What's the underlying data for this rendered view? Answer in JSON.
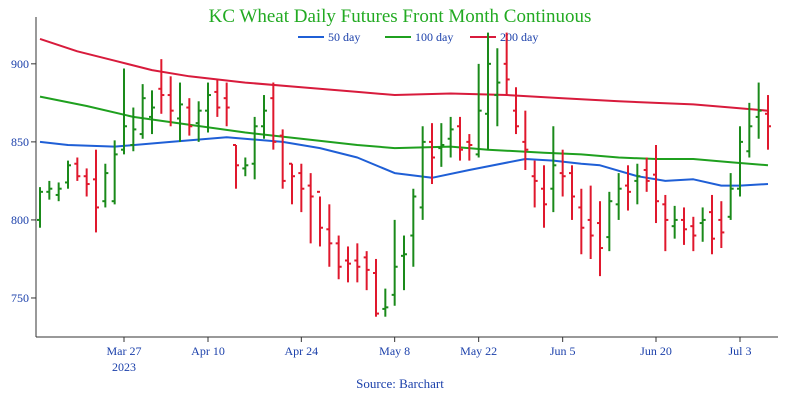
{
  "chart_data": {
    "type": "ohlc",
    "title": "KC Wheat Daily Futures Front Month Continuous",
    "source": "Source: Barchart",
    "ylim": [
      725,
      930
    ],
    "yticks": [
      750,
      800,
      850,
      900
    ],
    "x_index_range": [
      0,
      78
    ],
    "xticks": [
      {
        "index": 9,
        "label": "Mar 27",
        "sublabel": "2023"
      },
      {
        "index": 18,
        "label": "Apr 10",
        "sublabel": ""
      },
      {
        "index": 28,
        "label": "Apr 24",
        "sublabel": ""
      },
      {
        "index": 38,
        "label": "May 8",
        "sublabel": ""
      },
      {
        "index": 47,
        "label": "May 22",
        "sublabel": ""
      },
      {
        "index": 56,
        "label": "Jun 5",
        "sublabel": ""
      },
      {
        "index": 66,
        "label": "Jun 20",
        "sublabel": ""
      },
      {
        "index": 75,
        "label": "Jul 3",
        "sublabel": ""
      }
    ],
    "colors": {
      "up": "#1a8a1a",
      "down": "#e0182d",
      "ma50": "#1f5fd6",
      "ma100": "#1fa01f",
      "ma200": "#d81b3c",
      "title": "#22aa22",
      "axis": "#333333"
    },
    "legend": [
      {
        "name": "50 day",
        "key": "ma50"
      },
      {
        "name": "100 day",
        "key": "ma100"
      },
      {
        "name": "200 day",
        "key": "ma200"
      }
    ],
    "bars": [
      [
        800,
        821,
        795,
        818
      ],
      [
        818,
        825,
        813,
        820
      ],
      [
        816,
        824,
        812,
        820
      ],
      [
        824,
        838,
        820,
        835
      ],
      [
        836,
        840,
        825,
        828
      ],
      [
        828,
        833,
        815,
        823
      ],
      [
        826,
        845,
        792,
        808
      ],
      [
        812,
        836,
        808,
        830
      ],
      [
        812,
        851,
        810,
        842
      ],
      [
        845,
        897,
        842,
        860
      ],
      [
        848,
        872,
        844,
        858
      ],
      [
        855,
        887,
        852,
        878
      ],
      [
        866,
        883,
        855,
        872
      ],
      [
        884,
        903,
        868,
        880
      ],
      [
        880,
        892,
        860,
        870
      ],
      [
        865,
        888,
        850,
        874
      ],
      [
        872,
        878,
        854,
        860
      ],
      [
        862,
        876,
        850,
        870
      ],
      [
        870,
        888,
        856,
        880
      ],
      [
        882,
        890,
        866,
        872
      ],
      [
        878,
        888,
        860,
        872
      ],
      [
        848,
        848,
        820,
        835
      ],
      [
        833,
        840,
        828,
        835
      ],
      [
        836,
        866,
        826,
        860
      ],
      [
        860,
        880,
        852,
        870
      ],
      [
        878,
        888,
        845,
        850
      ],
      [
        854,
        858,
        820,
        825
      ],
      [
        836,
        836,
        810,
        828
      ],
      [
        830,
        836,
        805,
        820
      ],
      [
        822,
        830,
        785,
        815
      ],
      [
        818,
        815,
        783,
        795
      ],
      [
        794,
        810,
        770,
        785
      ],
      [
        785,
        790,
        762,
        770
      ],
      [
        774,
        783,
        760,
        772
      ],
      [
        774,
        785,
        760,
        770
      ],
      [
        776,
        780,
        755,
        768
      ],
      [
        766,
        775,
        738,
        740
      ],
      [
        743,
        756,
        738,
        744
      ],
      [
        752,
        800,
        745,
        770
      ],
      [
        777,
        790,
        755,
        778
      ],
      [
        790,
        820,
        770,
        815
      ],
      [
        808,
        860,
        800,
        850
      ],
      [
        850,
        862,
        823,
        840
      ],
      [
        846,
        862,
        834,
        848
      ],
      [
        852,
        866,
        840,
        858
      ],
      [
        860,
        866,
        838,
        845
      ],
      [
        850,
        855,
        838,
        848
      ],
      [
        842,
        900,
        840,
        870
      ],
      [
        868,
        920,
        845,
        900
      ],
      [
        880,
        910,
        860,
        888
      ],
      [
        900,
        920,
        880,
        890
      ],
      [
        870,
        885,
        855,
        860
      ],
      [
        850,
        870,
        832,
        845
      ],
      [
        828,
        838,
        808,
        825
      ],
      [
        820,
        835,
        795,
        810
      ],
      [
        820,
        860,
        805,
        835
      ],
      [
        830,
        845,
        815,
        828
      ],
      [
        830,
        835,
        800,
        815
      ],
      [
        808,
        820,
        778,
        795
      ],
      [
        800,
        822,
        775,
        790
      ],
      [
        798,
        812,
        764,
        782
      ],
      [
        789,
        818,
        780,
        812
      ],
      [
        810,
        830,
        800,
        820
      ],
      [
        822,
        835,
        806,
        818
      ],
      [
        825,
        836,
        810,
        828
      ],
      [
        832,
        840,
        818,
        825
      ],
      [
        829,
        848,
        798,
        812
      ],
      [
        810,
        816,
        780,
        800
      ],
      [
        796,
        809,
        788,
        800
      ],
      [
        800,
        808,
        784,
        794
      ],
      [
        796,
        802,
        780,
        790
      ],
      [
        798,
        808,
        786,
        800
      ],
      [
        805,
        816,
        778,
        788
      ],
      [
        800,
        812,
        782,
        792
      ],
      [
        802,
        830,
        800,
        820
      ],
      [
        820,
        860,
        815,
        850
      ],
      [
        844,
        875,
        840,
        860
      ],
      [
        866,
        888,
        852,
        870
      ],
      [
        868,
        880,
        845,
        860
      ]
    ],
    "ma50": [
      [
        0,
        850
      ],
      [
        3,
        848
      ],
      [
        8,
        847
      ],
      [
        14,
        850
      ],
      [
        20,
        853
      ],
      [
        26,
        850
      ],
      [
        30,
        846
      ],
      [
        34,
        840
      ],
      [
        38,
        830
      ],
      [
        42,
        827
      ],
      [
        46,
        832
      ],
      [
        52,
        839
      ],
      [
        55,
        838
      ],
      [
        58,
        836
      ],
      [
        60,
        835
      ],
      [
        64,
        828
      ],
      [
        67,
        825
      ],
      [
        70,
        826
      ],
      [
        73,
        822
      ],
      [
        75,
        822
      ],
      [
        78,
        823
      ]
    ],
    "ma100": [
      [
        0,
        879
      ],
      [
        5,
        873
      ],
      [
        10,
        866
      ],
      [
        16,
        861
      ],
      [
        22,
        856
      ],
      [
        28,
        852
      ],
      [
        34,
        848
      ],
      [
        38,
        846
      ],
      [
        44,
        847
      ],
      [
        48,
        845
      ],
      [
        54,
        843
      ],
      [
        58,
        842
      ],
      [
        62,
        840
      ],
      [
        66,
        839
      ],
      [
        70,
        839
      ],
      [
        74,
        837
      ],
      [
        78,
        835
      ]
    ],
    "ma200": [
      [
        0,
        916
      ],
      [
        4,
        908
      ],
      [
        8,
        902
      ],
      [
        12,
        896
      ],
      [
        16,
        892
      ],
      [
        22,
        888
      ],
      [
        28,
        885
      ],
      [
        34,
        882
      ],
      [
        38,
        880
      ],
      [
        44,
        881
      ],
      [
        50,
        880
      ],
      [
        56,
        878
      ],
      [
        62,
        876
      ],
      [
        66,
        875
      ],
      [
        70,
        874
      ],
      [
        74,
        872
      ],
      [
        78,
        870
      ]
    ]
  }
}
